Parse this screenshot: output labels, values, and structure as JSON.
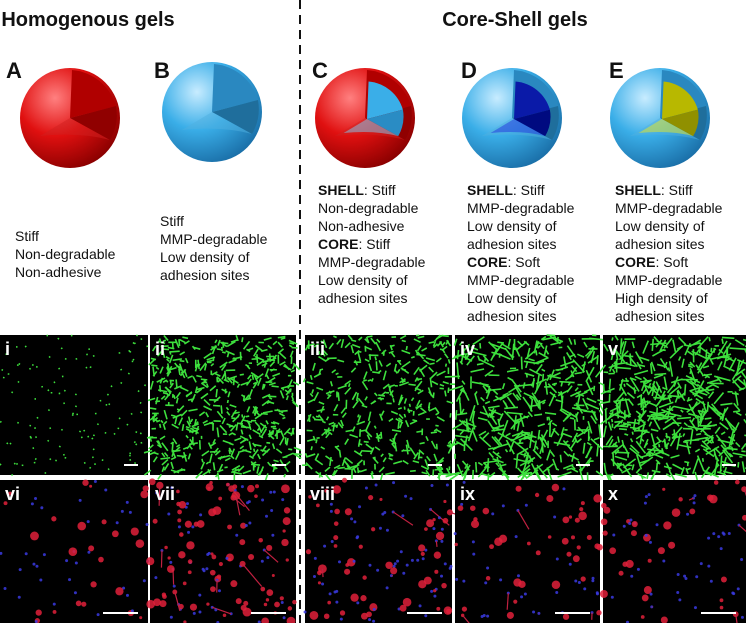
{
  "header": {
    "left": "Homogenous gels",
    "right": "Core-Shell gels"
  },
  "panels": [
    {
      "letter": "A",
      "lines": [
        "Stiff",
        "Non-degradable",
        "Non-adhesive"
      ]
    },
    {
      "letter": "B",
      "lines": [
        "Stiff",
        "MMP-degradable",
        "Low density of",
        "adhesion sites"
      ]
    },
    {
      "letter": "C",
      "shell": {
        "label": "SHELL",
        "lines": [
          ": Stiff",
          "Non-degradable",
          "Non-adhesive"
        ]
      },
      "core": {
        "label": "CORE",
        "lines": [
          ": Stiff",
          "MMP-degradable",
          "Low density of",
          "adhesion sites"
        ]
      }
    },
    {
      "letter": "D",
      "shell": {
        "label": "SHELL",
        "lines": [
          ": Stiff",
          "MMP-degradable",
          "Low density of",
          "adhesion sites"
        ]
      },
      "core": {
        "label": "CORE",
        "lines": [
          ": Soft",
          "MMP-degradable",
          "Low density of",
          "adhesion sites"
        ]
      }
    },
    {
      "letter": "E",
      "shell": {
        "label": "SHELL",
        "lines": [
          ": Stiff",
          "MMP-degradable",
          "Low density of",
          "adhesion sites"
        ]
      },
      "core": {
        "label": "CORE",
        "lines": [
          ": Soft",
          "MMP-degradable",
          "High density of",
          "adhesion sites"
        ]
      }
    }
  ],
  "images": {
    "top": [
      "i",
      "ii",
      "iii",
      "iv",
      "v"
    ],
    "bottom": [
      "vi",
      "vii",
      "viii",
      "ix",
      "x"
    ]
  }
}
